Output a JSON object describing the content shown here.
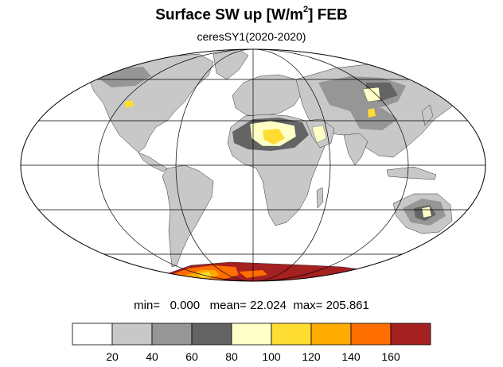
{
  "title": {
    "main": "Surface SW up [W/m",
    "sup": "2",
    "end": "]  FEB"
  },
  "subtitle": "ceresSY1(2020-2020)",
  "stats": {
    "min_label": "min=",
    "min": "0.000",
    "mean_label": "mean=",
    "mean": "22.024",
    "max_label": "max=",
    "max": "205.861"
  },
  "colorbar": {
    "colors": [
      "#ffffff",
      "#c8c8c8",
      "#969696",
      "#646464",
      "#ffffc8",
      "#ffdc32",
      "#ffaa00",
      "#ff6e00",
      "#a52020"
    ],
    "labels": [
      "20",
      "40",
      "60",
      "80",
      "100",
      "120",
      "140",
      "160"
    ]
  },
  "map": {
    "projection": "Mollweide",
    "land_color": "#c8c8c8",
    "ocean_color": "#ffffff"
  }
}
